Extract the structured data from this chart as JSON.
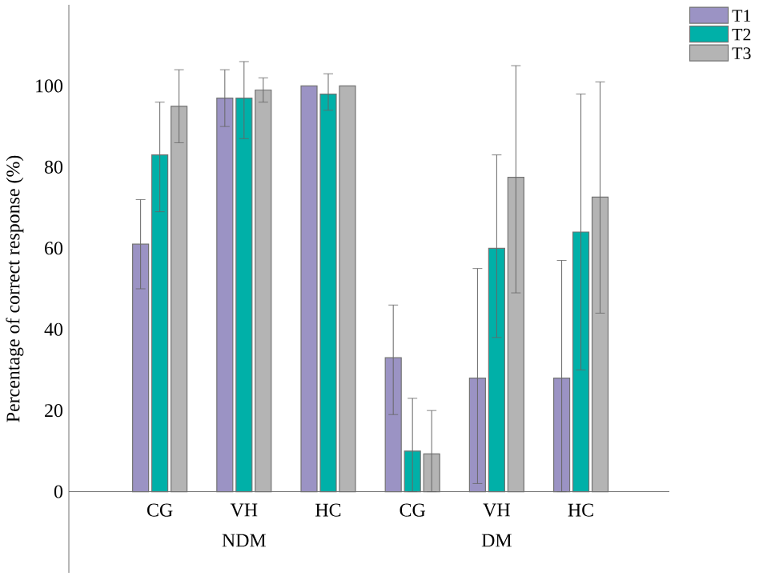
{
  "chart_data": {
    "type": "bar",
    "ylabel": "Percentage of correct response (%)",
    "categories": [
      "CG",
      "VH",
      "HC",
      "CG",
      "VH",
      "HC"
    ],
    "annotations": [
      "NDM",
      "DM"
    ],
    "ylim": [
      -20,
      120
    ],
    "yticks": [
      0,
      20,
      40,
      60,
      80,
      100
    ],
    "legend": "top right",
    "series": [
      {
        "name": "T1",
        "color": "#9b93c4",
        "values": [
          61,
          97,
          100,
          33,
          28,
          28
        ],
        "errors": [
          [
            50,
            72
          ],
          [
            90,
            104
          ],
          null,
          [
            19,
            46
          ],
          [
            2,
            55
          ],
          [
            0,
            57
          ]
        ]
      },
      {
        "name": "T2",
        "color": "#00b0a8",
        "values": [
          83,
          97,
          98,
          10,
          60,
          64
        ],
        "errors": [
          [
            69,
            96
          ],
          [
            87,
            106
          ],
          [
            94,
            103
          ],
          [
            0,
            23
          ],
          [
            38,
            83
          ],
          [
            30,
            98
          ]
        ]
      },
      {
        "name": "T3",
        "color": "#b4b4b4",
        "values": [
          95,
          99,
          100,
          9.3,
          77.5,
          72.6
        ],
        "errors": [
          [
            86,
            104
          ],
          [
            96,
            102
          ],
          null,
          [
            0,
            20
          ],
          [
            49,
            105
          ],
          [
            44,
            101
          ]
        ]
      }
    ]
  }
}
